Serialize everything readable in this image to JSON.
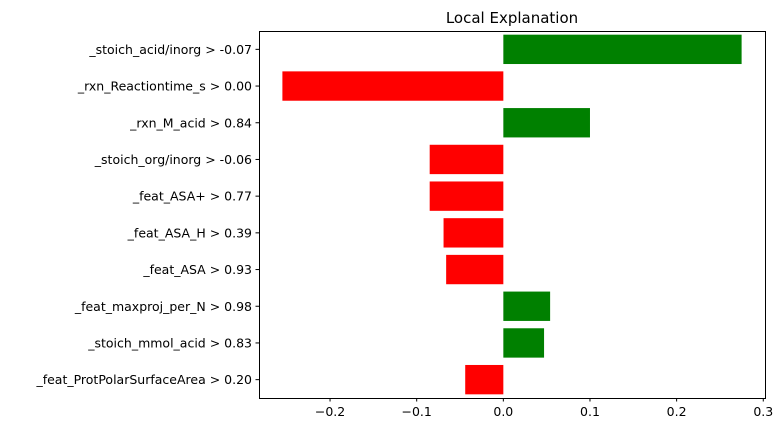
{
  "chart_data": {
    "type": "bar",
    "orientation": "horizontal",
    "title": "Local Explanation",
    "xlabel": "",
    "ylabel": "",
    "xlim": [
      -0.282,
      0.302
    ],
    "xticks": [
      -0.2,
      -0.1,
      0.0,
      0.1,
      0.2,
      0.3
    ],
    "xtick_labels": [
      "−0.2",
      "−0.1",
      "0.0",
      "0.1",
      "0.2",
      "0.3"
    ],
    "grid": false,
    "legend": "none",
    "categories": [
      "_stoich_acid/inorg > -0.07",
      "_rxn_Reactiontime_s > 0.00",
      "_rxn_M_acid > 0.84",
      "_stoich_org/inorg > -0.06",
      "_feat_ASA+ > 0.77",
      "_feat_ASA_H > 0.39",
      "_feat_ASA > 0.93",
      "_feat_maxproj_per_N > 0.98",
      "_stoich_mmol_acid > 0.83",
      "_feat_ProtPolarSurfaceArea > 0.20"
    ],
    "values": [
      0.275,
      -0.255,
      0.1,
      -0.085,
      -0.085,
      -0.069,
      -0.066,
      0.054,
      0.047,
      -0.044
    ],
    "colors": {
      "positive": "#008000",
      "negative": "#ff0000"
    }
  }
}
